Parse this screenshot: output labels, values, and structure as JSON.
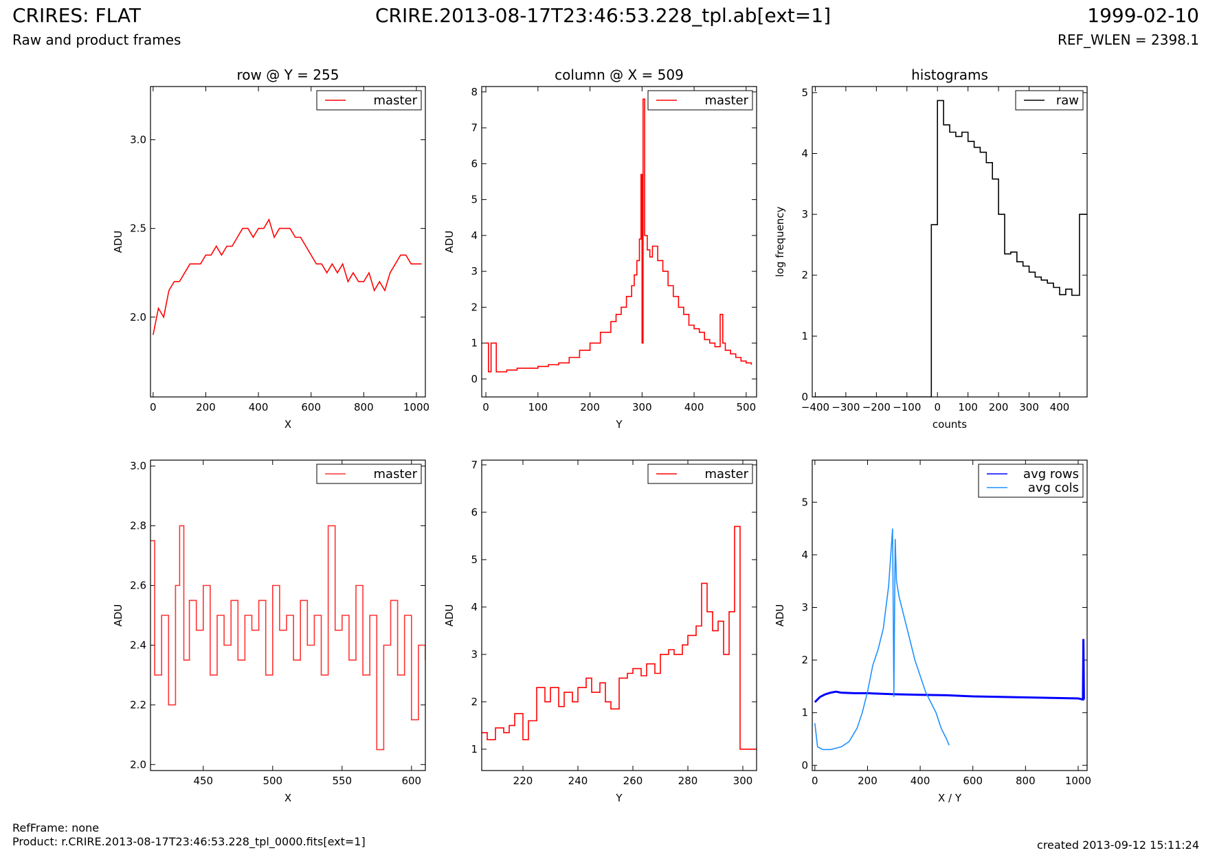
{
  "header": {
    "title_left": "CRIRES: FLAT",
    "subtitle_left": "Raw and product frames",
    "title_center": "CRIRE.2013-08-17T23:46:53.228_tpl.ab[ext=1]",
    "title_right": "1999-02-10",
    "subtitle_right": "REF_WLEN = 2398.1"
  },
  "footer": {
    "ref_frame": "RefFrame: none",
    "product": "Product: r.CRIRE.2013-08-17T23:46:53.228_tpl_0000.fits[ext=1]",
    "created": "created 2013-09-12 15:11:24"
  },
  "chart_data": [
    {
      "type": "line",
      "title": "row @ Y = 255",
      "xlabel": "X",
      "ylabel": "ADU",
      "xlim": [
        -10,
        1034
      ],
      "ylim": [
        1.55,
        3.3
      ],
      "xticks": [
        0,
        200,
        400,
        600,
        800,
        1000
      ],
      "yticks": [
        2.0,
        2.5,
        3.0
      ],
      "ytick_labels": [
        "2.0",
        "2.5",
        "3.0"
      ],
      "legend": "top-right",
      "series": [
        {
          "name": "master",
          "color": "#ff0000",
          "x": [
            0,
            20,
            40,
            60,
            80,
            100,
            120,
            140,
            160,
            180,
            200,
            220,
            240,
            260,
            280,
            300,
            320,
            340,
            360,
            380,
            400,
            420,
            440,
            460,
            480,
            500,
            520,
            540,
            560,
            580,
            600,
            620,
            640,
            660,
            680,
            700,
            720,
            740,
            760,
            780,
            800,
            820,
            840,
            860,
            880,
            900,
            920,
            940,
            960,
            980,
            1000,
            1020
          ],
          "y": [
            1.9,
            2.05,
            2.0,
            2.15,
            2.2,
            2.2,
            2.25,
            2.3,
            2.3,
            2.3,
            2.35,
            2.35,
            2.4,
            2.35,
            2.4,
            2.4,
            2.45,
            2.5,
            2.5,
            2.45,
            2.5,
            2.5,
            2.55,
            2.45,
            2.5,
            2.5,
            2.5,
            2.45,
            2.45,
            2.4,
            2.35,
            2.3,
            2.3,
            2.25,
            2.3,
            2.25,
            2.3,
            2.2,
            2.25,
            2.2,
            2.2,
            2.25,
            2.15,
            2.2,
            2.15,
            2.25,
            2.3,
            2.35,
            2.35,
            2.3,
            2.3,
            2.3
          ]
        }
      ]
    },
    {
      "type": "line",
      "title": "column @ X = 509",
      "xlabel": "Y",
      "ylabel": "ADU",
      "xlim": [
        -8,
        520
      ],
      "ylim": [
        -0.5,
        8.15
      ],
      "xticks": [
        0,
        100,
        200,
        300,
        400,
        500
      ],
      "yticks": [
        0,
        1,
        2,
        3,
        4,
        5,
        6,
        7,
        8
      ],
      "legend": "top-right",
      "series": [
        {
          "name": "master",
          "color": "#ff0000",
          "step": true,
          "x": [
            0,
            5,
            10,
            20,
            40,
            60,
            80,
            100,
            120,
            140,
            160,
            180,
            200,
            220,
            240,
            250,
            260,
            270,
            280,
            285,
            290,
            295,
            298,
            300,
            302,
            305,
            310,
            315,
            320,
            330,
            340,
            350,
            360,
            370,
            380,
            390,
            400,
            410,
            420,
            430,
            440,
            450,
            455,
            460,
            470,
            480,
            490,
            500,
            510
          ],
          "y": [
            1.0,
            0.2,
            1.0,
            0.2,
            0.25,
            0.3,
            0.3,
            0.35,
            0.4,
            0.45,
            0.6,
            0.8,
            1.0,
            1.3,
            1.6,
            1.8,
            2.0,
            2.3,
            2.6,
            2.9,
            3.3,
            3.9,
            5.7,
            1.0,
            7.8,
            4.0,
            3.6,
            3.4,
            3.7,
            3.3,
            3.0,
            2.6,
            2.3,
            2.0,
            1.8,
            1.5,
            1.4,
            1.3,
            1.1,
            1.0,
            0.9,
            1.8,
            1.0,
            0.8,
            0.7,
            0.6,
            0.5,
            0.45,
            0.4
          ]
        }
      ]
    },
    {
      "type": "line",
      "title": "histograms",
      "xlabel": "counts",
      "ylabel": "log frequency",
      "xlim": [
        -410,
        490
      ],
      "ylim": [
        0,
        5.1
      ],
      "xticks": [
        -400,
        -300,
        -200,
        -100,
        0,
        100,
        200,
        300,
        400
      ],
      "xtick_labels": [
        "−400",
        "−300",
        "−200",
        "−100",
        "0",
        "100",
        "200",
        "300",
        "400"
      ],
      "yticks": [
        0,
        1,
        2,
        3,
        4,
        5
      ],
      "legend": "top-right",
      "series": [
        {
          "name": "raw",
          "color": "#000000",
          "step": true,
          "x": [
            -410,
            -40,
            -20,
            0,
            20,
            40,
            60,
            80,
            100,
            120,
            140,
            160,
            180,
            200,
            220,
            240,
            260,
            280,
            300,
            320,
            340,
            360,
            380,
            400,
            420,
            440,
            465,
            490
          ],
          "y": [
            0,
            0,
            2.83,
            4.87,
            4.47,
            4.35,
            4.28,
            4.35,
            4.2,
            4.1,
            4.02,
            3.85,
            3.58,
            3.0,
            2.35,
            2.38,
            2.22,
            2.15,
            2.05,
            1.97,
            1.92,
            1.87,
            1.8,
            1.68,
            1.77,
            1.67,
            3.0,
            3.0
          ]
        }
      ]
    },
    {
      "type": "line",
      "title": "",
      "xlabel": "X",
      "ylabel": "ADU",
      "xlim": [
        412,
        610
      ],
      "ylim": [
        1.98,
        3.02
      ],
      "xticks": [
        450,
        500,
        550,
        600
      ],
      "yticks": [
        2.0,
        2.2,
        2.4,
        2.6,
        2.8,
        3.0
      ],
      "ytick_labels": [
        "2.0",
        "2.2",
        "2.4",
        "2.6",
        "2.8",
        "3.0"
      ],
      "legend": "top-right",
      "series": [
        {
          "name": "master",
          "color": "#ff3333",
          "step": true,
          "x": [
            412,
            415,
            420,
            425,
            430,
            433,
            436,
            440,
            445,
            450,
            455,
            460,
            465,
            470,
            475,
            480,
            485,
            490,
            495,
            500,
            505,
            510,
            515,
            520,
            525,
            530,
            535,
            540,
            545,
            550,
            555,
            560,
            565,
            570,
            575,
            580,
            585,
            590,
            595,
            600,
            605,
            610
          ],
          "y": [
            2.75,
            2.3,
            2.5,
            2.2,
            2.6,
            2.8,
            2.35,
            2.55,
            2.45,
            2.6,
            2.3,
            2.5,
            2.4,
            2.55,
            2.35,
            2.5,
            2.45,
            2.55,
            2.3,
            2.6,
            2.45,
            2.5,
            2.35,
            2.55,
            2.4,
            2.5,
            2.3,
            2.8,
            2.45,
            2.5,
            2.35,
            2.6,
            2.3,
            2.5,
            2.05,
            2.4,
            2.55,
            2.3,
            2.5,
            2.15,
            2.4,
            2.35
          ]
        }
      ]
    },
    {
      "type": "line",
      "title": "",
      "xlabel": "Y",
      "ylabel": "ADU",
      "xlim": [
        205,
        305
      ],
      "ylim": [
        0.55,
        7.1
      ],
      "xticks": [
        220,
        240,
        260,
        280,
        300
      ],
      "yticks": [
        1,
        2,
        3,
        4,
        5,
        6,
        7
      ],
      "legend": "top-right",
      "series": [
        {
          "name": "master",
          "color": "#ff0000",
          "step": true,
          "x": [
            205,
            207,
            210,
            213,
            215,
            217,
            220,
            222,
            225,
            228,
            230,
            233,
            235,
            238,
            240,
            243,
            245,
            248,
            250,
            252,
            255,
            258,
            260,
            263,
            265,
            268,
            270,
            273,
            275,
            278,
            280,
            283,
            285,
            287,
            289,
            291,
            293,
            295,
            297,
            299,
            302,
            305
          ],
          "y": [
            1.35,
            1.2,
            1.45,
            1.35,
            1.5,
            1.75,
            1.2,
            1.6,
            2.3,
            2.0,
            2.3,
            1.9,
            2.2,
            2.0,
            2.3,
            2.5,
            2.2,
            2.4,
            2.0,
            1.85,
            2.5,
            2.6,
            2.7,
            2.55,
            2.8,
            2.6,
            3.0,
            3.1,
            3.0,
            3.2,
            3.4,
            3.6,
            4.5,
            3.9,
            3.5,
            3.7,
            3.0,
            3.9,
            5.7,
            1.0,
            1.0,
            1.0
          ]
        }
      ]
    },
    {
      "type": "line",
      "title": "",
      "xlabel": "X / Y",
      "ylabel": "ADU",
      "xlim": [
        -10,
        1034
      ],
      "ylim": [
        -0.1,
        5.8
      ],
      "xticks": [
        0,
        200,
        400,
        600,
        800,
        1000
      ],
      "yticks": [
        0,
        1,
        2,
        3,
        4,
        5
      ],
      "legend": "top-right",
      "series": [
        {
          "name": "avg rows",
          "color": "#0000ff",
          "x": [
            0,
            20,
            40,
            60,
            80,
            100,
            150,
            200,
            300,
            400,
            500,
            600,
            700,
            800,
            900,
            1000,
            1018,
            1020,
            1022
          ],
          "y": [
            1.2,
            1.3,
            1.35,
            1.38,
            1.4,
            1.38,
            1.37,
            1.37,
            1.35,
            1.34,
            1.33,
            1.31,
            1.3,
            1.29,
            1.28,
            1.27,
            1.25,
            2.4,
            1.25
          ]
        },
        {
          "name": "avg cols",
          "color": "#1e90ff",
          "x": [
            0,
            10,
            30,
            60,
            100,
            130,
            160,
            180,
            200,
            220,
            240,
            260,
            280,
            295,
            300,
            305,
            310,
            320,
            340,
            360,
            380,
            400,
            420,
            440,
            460,
            480,
            500,
            510
          ],
          "y": [
            0.8,
            0.35,
            0.3,
            0.3,
            0.35,
            0.45,
            0.7,
            1.0,
            1.4,
            1.9,
            2.2,
            2.6,
            3.4,
            4.5,
            1.3,
            4.3,
            3.5,
            3.2,
            2.8,
            2.4,
            2.0,
            1.7,
            1.4,
            1.2,
            1.0,
            0.7,
            0.5,
            0.38
          ]
        }
      ]
    }
  ]
}
